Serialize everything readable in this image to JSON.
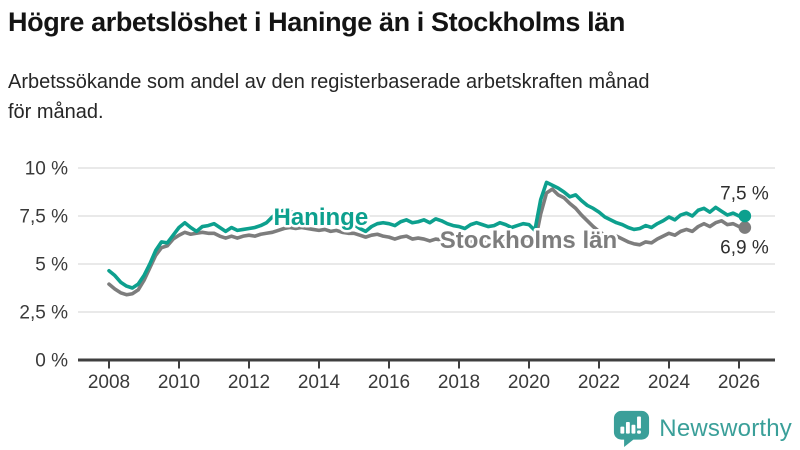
{
  "page": {
    "title": "Högre arbetslöshet i Haninge än i Stockholms län",
    "subtitle_lines": [
      "Arbetssökande som andel av den registerbaserade arbetskraften månad",
      "för månad."
    ]
  },
  "branding": {
    "wordmark": "Newsworthy",
    "logo_icon": "bar-chart-speech-bubble-icon",
    "color": "#3a9f99"
  },
  "colors": {
    "haninge_line": "#0da08e",
    "stockholm_line": "#7d7d7d",
    "gridline": "#dcdcdc",
    "axis": "#3f3f3f",
    "text": "#2e2e2e"
  },
  "chart_data": {
    "type": "line",
    "x_unit": "year, monthly data plotted",
    "x_start": 2008.0,
    "points_per_year": 6,
    "x_end": 2026.17,
    "xlim": [
      2007.1,
      2027.05
    ],
    "ylim": [
      0,
      10
    ],
    "grid": "horizontal",
    "legend": "inline labels on lines",
    "x_ticks": [
      {
        "v": 2008,
        "label": "2008"
      },
      {
        "v": 2010,
        "label": "2010"
      },
      {
        "v": 2012,
        "label": "2012"
      },
      {
        "v": 2014,
        "label": "2014"
      },
      {
        "v": 2016,
        "label": "2016"
      },
      {
        "v": 2018,
        "label": "2018"
      },
      {
        "v": 2020,
        "label": "2020"
      },
      {
        "v": 2022,
        "label": "2022"
      },
      {
        "v": 2024,
        "label": "2024"
      },
      {
        "v": 2026,
        "label": "2026"
      }
    ],
    "y_ticks": [
      {
        "v": 0,
        "label": "0 %"
      },
      {
        "v": 2.5,
        "label": "2,5 %"
      },
      {
        "v": 5,
        "label": "5 %"
      },
      {
        "v": 7.5,
        "label": "7,5 %"
      },
      {
        "v": 10,
        "label": "10 %"
      }
    ],
    "series": [
      {
        "name": "Stockholms län",
        "color": "#7d7d7d",
        "end_value": 6.9,
        "end_label": "6,9 %",
        "label_at": {
          "x": 2017.45,
          "v": 5.83,
          "anchor": "start"
        },
        "end_label_at": {
          "x": 2026.85,
          "v": 5.55,
          "anchor": "end"
        },
        "values": [
          3.95,
          3.7,
          3.5,
          3.4,
          3.45,
          3.65,
          4.15,
          4.8,
          5.45,
          5.85,
          5.95,
          6.3,
          6.5,
          6.65,
          6.55,
          6.6,
          6.65,
          6.6,
          6.6,
          6.45,
          6.35,
          6.45,
          6.35,
          6.45,
          6.5,
          6.45,
          6.55,
          6.6,
          6.65,
          6.75,
          6.85,
          6.9,
          6.85,
          6.9,
          6.85,
          6.8,
          6.75,
          6.8,
          6.7,
          6.75,
          6.65,
          6.6,
          6.6,
          6.5,
          6.4,
          6.5,
          6.55,
          6.45,
          6.4,
          6.3,
          6.4,
          6.45,
          6.3,
          6.35,
          6.3,
          6.2,
          6.3,
          6.25,
          6.15,
          6.1,
          6.1,
          6.0,
          6.15,
          6.25,
          6.2,
          6.15,
          6.25,
          6.35,
          6.3,
          6.2,
          6.3,
          6.35,
          6.3,
          6.1,
          7.6,
          8.7,
          8.9,
          8.6,
          8.45,
          8.15,
          7.9,
          7.55,
          7.25,
          6.95,
          6.7,
          6.5,
          6.35,
          6.45,
          6.3,
          6.15,
          6.05,
          6.0,
          6.15,
          6.1,
          6.3,
          6.45,
          6.6,
          6.5,
          6.7,
          6.8,
          6.7,
          6.95,
          7.1,
          6.95,
          7.15,
          7.25,
          7.05,
          7.1,
          6.95,
          6.9
        ]
      },
      {
        "name": "Haninge",
        "color": "#0da08e",
        "end_value": 7.5,
        "end_label": "7,5 %",
        "label_at": {
          "x": 2012.7,
          "v": 7.03,
          "anchor": "start"
        },
        "end_label_at": {
          "x": 2026.85,
          "v": 8.35,
          "anchor": "end"
        },
        "values": [
          4.65,
          4.4,
          4.05,
          3.85,
          3.75,
          3.95,
          4.4,
          5.0,
          5.7,
          6.15,
          6.1,
          6.5,
          6.9,
          7.15,
          6.9,
          6.7,
          6.95,
          7.0,
          7.1,
          6.9,
          6.7,
          6.9,
          6.75,
          6.8,
          6.85,
          6.9,
          7.0,
          7.15,
          7.45,
          7.7,
          7.8,
          7.75,
          7.6,
          7.5,
          7.4,
          7.35,
          7.25,
          7.15,
          7.1,
          7.2,
          7.1,
          7.0,
          7.05,
          6.85,
          6.7,
          6.95,
          7.1,
          7.15,
          7.1,
          7.0,
          7.2,
          7.3,
          7.15,
          7.2,
          7.3,
          7.15,
          7.35,
          7.25,
          7.1,
          7.0,
          6.95,
          6.85,
          7.05,
          7.15,
          7.05,
          6.95,
          7.0,
          7.15,
          7.05,
          6.9,
          7.0,
          7.1,
          7.05,
          6.75,
          8.35,
          9.25,
          9.1,
          8.95,
          8.75,
          8.5,
          8.6,
          8.3,
          8.05,
          7.9,
          7.7,
          7.45,
          7.3,
          7.15,
          7.05,
          6.9,
          6.8,
          6.85,
          7.0,
          6.9,
          7.1,
          7.25,
          7.45,
          7.3,
          7.55,
          7.65,
          7.5,
          7.8,
          7.9,
          7.7,
          7.95,
          7.75,
          7.55,
          7.65,
          7.5,
          7.5
        ]
      }
    ]
  }
}
